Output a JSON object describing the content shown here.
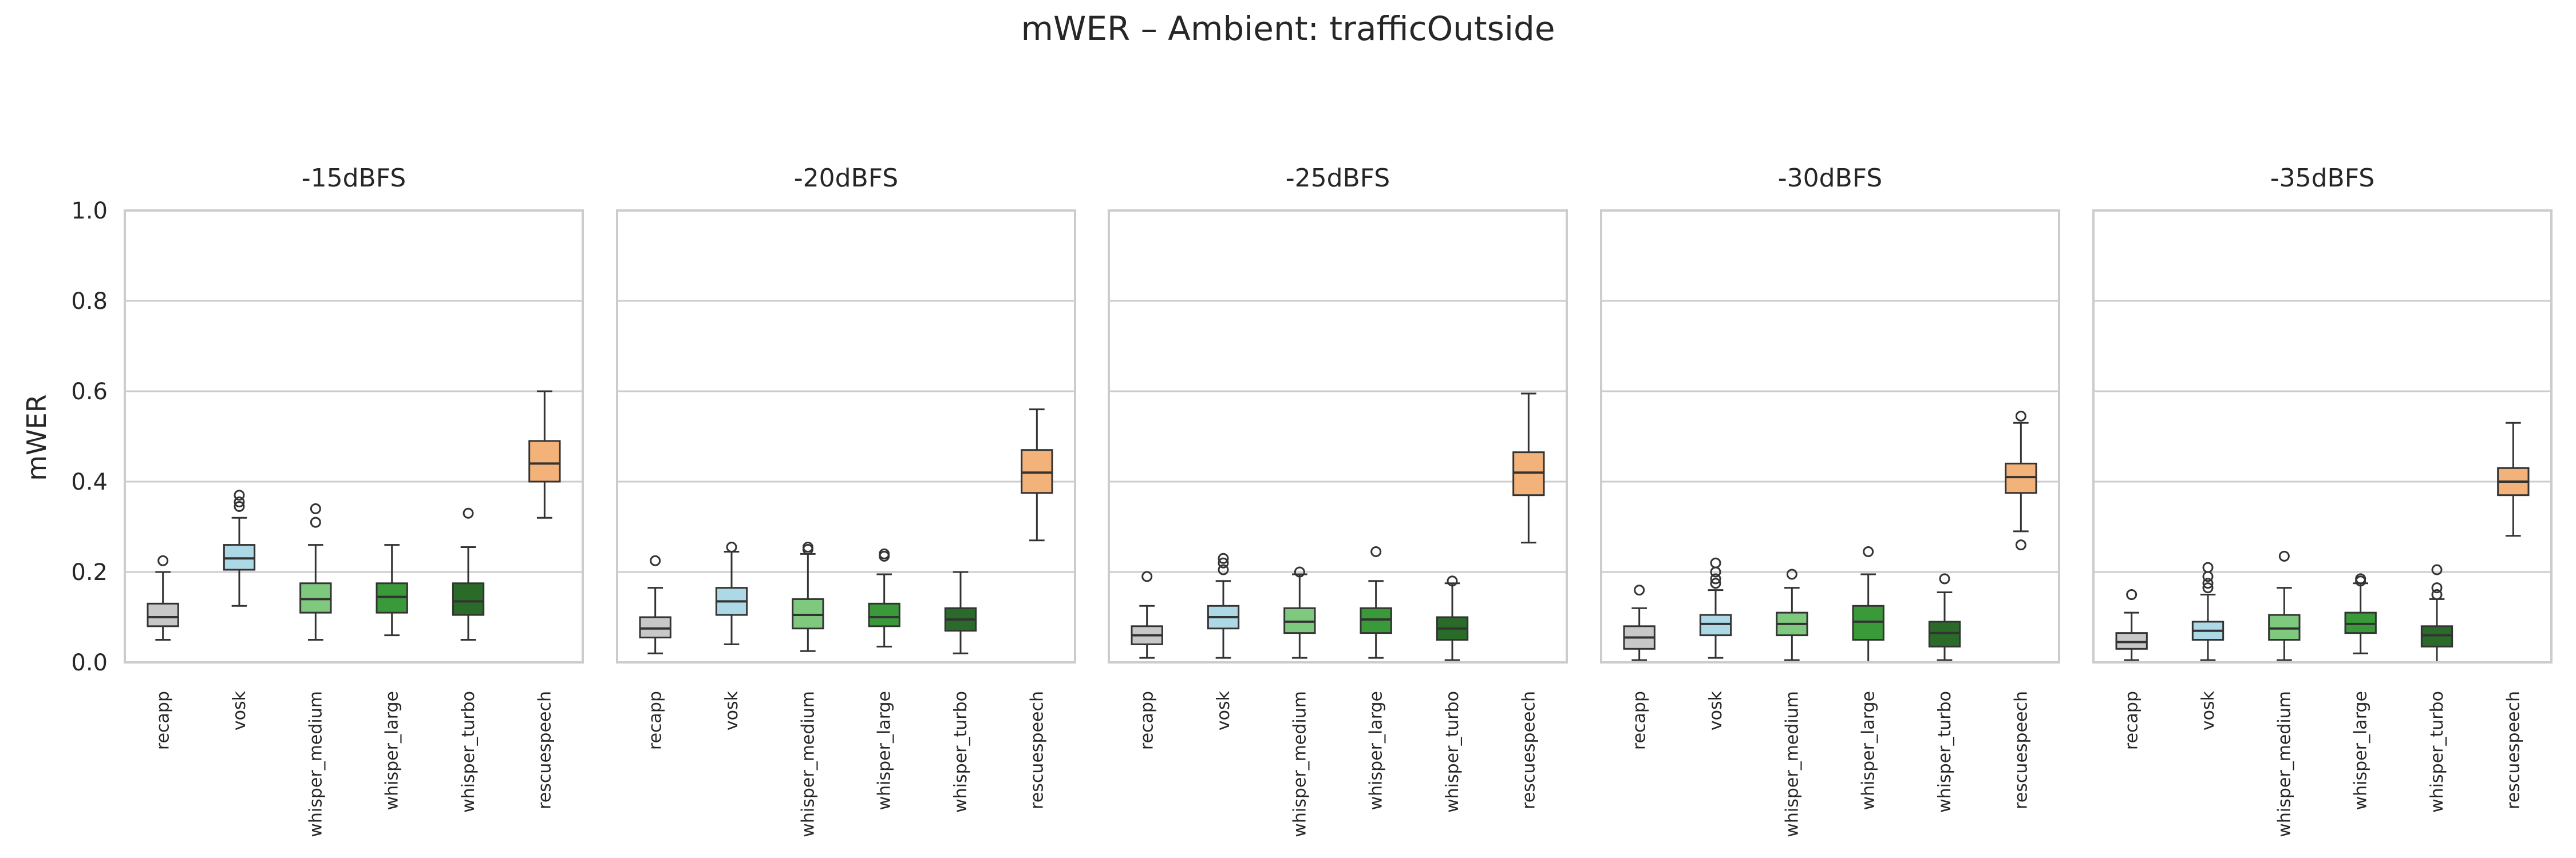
{
  "chart_data": {
    "type": "box",
    "title": "mWER – Ambient: trafficOutside",
    "ylabel": "mWER",
    "ylim": [
      0,
      1.0
    ],
    "yticks": [
      0.0,
      0.2,
      0.4,
      0.6,
      0.8,
      1.0
    ],
    "ytick_labels": [
      "0.0",
      "0.2",
      "0.4",
      "0.6",
      "0.8",
      "1.0"
    ],
    "grid": "horizontal",
    "categories": [
      "recapp",
      "vosk",
      "whisper_medium",
      "whisper_large",
      "whisper_turbo",
      "rescuespeech"
    ],
    "colors": {
      "recapp": "#c8c8c8",
      "vosk": "#add8e6",
      "whisper_medium": "#7fc97f",
      "whisper_large": "#3a9a3a",
      "whisper_turbo": "#2a6b2a",
      "rescuespeech": "#f2b27a"
    },
    "panels": [
      {
        "title": "-15dBFS",
        "boxes": [
          {
            "whislo": 0.05,
            "q1": 0.08,
            "med": 0.1,
            "q3": 0.13,
            "whishi": 0.2,
            "fliers": [
              0.225
            ]
          },
          {
            "whislo": 0.125,
            "q1": 0.205,
            "med": 0.23,
            "q3": 0.26,
            "whishi": 0.32,
            "fliers": [
              0.345,
              0.355,
              0.37
            ]
          },
          {
            "whislo": 0.05,
            "q1": 0.11,
            "med": 0.14,
            "q3": 0.175,
            "whishi": 0.26,
            "fliers": [
              0.31,
              0.34
            ]
          },
          {
            "whislo": 0.06,
            "q1": 0.11,
            "med": 0.145,
            "q3": 0.175,
            "whishi": 0.26,
            "fliers": []
          },
          {
            "whislo": 0.05,
            "q1": 0.105,
            "med": 0.135,
            "q3": 0.175,
            "whishi": 0.255,
            "fliers": [
              0.33
            ]
          },
          {
            "whislo": 0.32,
            "q1": 0.4,
            "med": 0.44,
            "q3": 0.49,
            "whishi": 0.6,
            "fliers": []
          }
        ]
      },
      {
        "title": "-20dBFS",
        "boxes": [
          {
            "whislo": 0.02,
            "q1": 0.055,
            "med": 0.075,
            "q3": 0.1,
            "whishi": 0.165,
            "fliers": [
              0.225
            ]
          },
          {
            "whislo": 0.04,
            "q1": 0.105,
            "med": 0.135,
            "q3": 0.165,
            "whishi": 0.245,
            "fliers": [
              0.255
            ]
          },
          {
            "whislo": 0.025,
            "q1": 0.075,
            "med": 0.105,
            "q3": 0.14,
            "whishi": 0.24,
            "fliers": [
              0.25,
              0.255
            ]
          },
          {
            "whislo": 0.035,
            "q1": 0.08,
            "med": 0.1,
            "q3": 0.13,
            "whishi": 0.195,
            "fliers": [
              0.235,
              0.24
            ]
          },
          {
            "whislo": 0.02,
            "q1": 0.07,
            "med": 0.095,
            "q3": 0.12,
            "whishi": 0.2,
            "fliers": []
          },
          {
            "whislo": 0.27,
            "q1": 0.375,
            "med": 0.42,
            "q3": 0.47,
            "whishi": 0.56,
            "fliers": []
          }
        ]
      },
      {
        "title": "-25dBFS",
        "boxes": [
          {
            "whislo": 0.01,
            "q1": 0.04,
            "med": 0.06,
            "q3": 0.08,
            "whishi": 0.125,
            "fliers": [
              0.19
            ]
          },
          {
            "whislo": 0.01,
            "q1": 0.075,
            "med": 0.1,
            "q3": 0.125,
            "whishi": 0.18,
            "fliers": [
              0.205,
              0.22,
              0.23
            ]
          },
          {
            "whislo": 0.01,
            "q1": 0.065,
            "med": 0.09,
            "q3": 0.12,
            "whishi": 0.195,
            "fliers": [
              0.2
            ]
          },
          {
            "whislo": 0.01,
            "q1": 0.065,
            "med": 0.095,
            "q3": 0.12,
            "whishi": 0.18,
            "fliers": [
              0.245
            ]
          },
          {
            "whislo": 0.005,
            "q1": 0.05,
            "med": 0.075,
            "q3": 0.1,
            "whishi": 0.175,
            "fliers": [
              0.18
            ]
          },
          {
            "whislo": 0.265,
            "q1": 0.37,
            "med": 0.42,
            "q3": 0.465,
            "whishi": 0.595,
            "fliers": []
          }
        ]
      },
      {
        "title": "-30dBFS",
        "boxes": [
          {
            "whislo": 0.005,
            "q1": 0.03,
            "med": 0.055,
            "q3": 0.08,
            "whishi": 0.12,
            "fliers": [
              0.16
            ]
          },
          {
            "whislo": 0.01,
            "q1": 0.06,
            "med": 0.085,
            "q3": 0.105,
            "whishi": 0.16,
            "fliers": [
              0.175,
              0.185,
              0.2,
              0.22
            ]
          },
          {
            "whislo": 0.005,
            "q1": 0.06,
            "med": 0.085,
            "q3": 0.11,
            "whishi": 0.165,
            "fliers": [
              0.195
            ]
          },
          {
            "whislo": 0.0,
            "q1": 0.05,
            "med": 0.09,
            "q3": 0.125,
            "whishi": 0.195,
            "fliers": [
              0.245
            ]
          },
          {
            "whislo": 0.005,
            "q1": 0.035,
            "med": 0.065,
            "q3": 0.09,
            "whishi": 0.155,
            "fliers": [
              0.185
            ]
          },
          {
            "whislo": 0.29,
            "q1": 0.375,
            "med": 0.41,
            "q3": 0.44,
            "whishi": 0.53,
            "fliers": [
              0.26,
              0.545
            ]
          }
        ]
      },
      {
        "title": "-35dBFS",
        "boxes": [
          {
            "whislo": 0.005,
            "q1": 0.03,
            "med": 0.045,
            "q3": 0.065,
            "whishi": 0.11,
            "fliers": [
              0.15
            ]
          },
          {
            "whislo": 0.005,
            "q1": 0.05,
            "med": 0.07,
            "q3": 0.09,
            "whishi": 0.15,
            "fliers": [
              0.165,
              0.175,
              0.19,
              0.21
            ]
          },
          {
            "whislo": 0.005,
            "q1": 0.05,
            "med": 0.075,
            "q3": 0.105,
            "whishi": 0.165,
            "fliers": [
              0.235
            ]
          },
          {
            "whislo": 0.02,
            "q1": 0.065,
            "med": 0.085,
            "q3": 0.11,
            "whishi": 0.175,
            "fliers": [
              0.18,
              0.185
            ]
          },
          {
            "whislo": 0.0,
            "q1": 0.035,
            "med": 0.06,
            "q3": 0.08,
            "whishi": 0.14,
            "fliers": [
              0.15,
              0.165,
              0.205
            ]
          },
          {
            "whislo": 0.28,
            "q1": 0.37,
            "med": 0.4,
            "q3": 0.43,
            "whishi": 0.53,
            "fliers": []
          }
        ]
      }
    ]
  }
}
